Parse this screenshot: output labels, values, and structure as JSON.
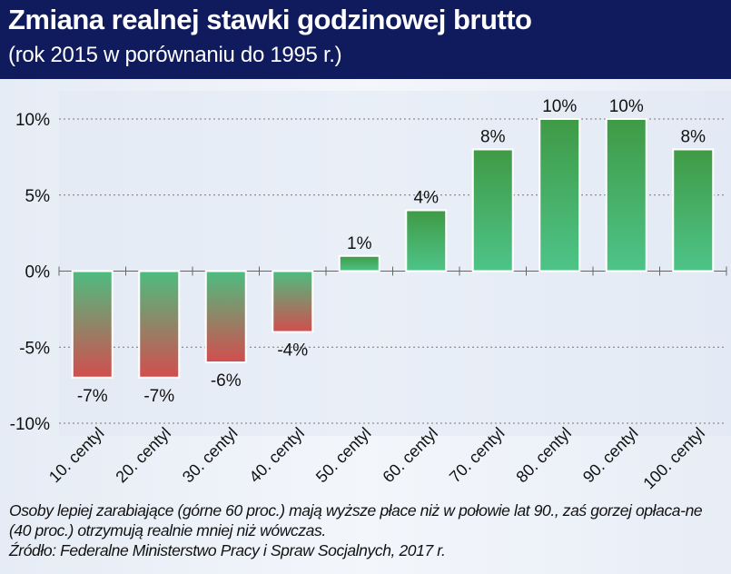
{
  "header": {
    "title": "Zmiana realnej stawki godzinowej brutto",
    "subtitle": "(rok 2015 w porównaniu do 1995 r.)"
  },
  "chart_data": {
    "type": "bar",
    "title": "Zmiana realnej stawki godzinowej brutto",
    "subtitle": "(rok 2015 w porównaniu do 1995 r.)",
    "xlabel": "",
    "ylabel": "",
    "categories": [
      "10. centyl",
      "20. centyl",
      "30. centyl",
      "40. centyl",
      "50. centyl",
      "60. centyl",
      "70. centyl",
      "80. centyl",
      "90. centyl",
      "100. centyl"
    ],
    "values": [
      -7,
      -7,
      -6,
      -4,
      1,
      4,
      8,
      10,
      10,
      8
    ],
    "data_labels": [
      "-7%",
      "-7%",
      "-6%",
      "-4%",
      "1%",
      "4%",
      "8%",
      "10%",
      "10%",
      "8%"
    ],
    "ylim": [
      -10,
      10
    ],
    "yticks": [
      10,
      5,
      0,
      -5,
      -10
    ],
    "ytick_labels": [
      "10%",
      "5%",
      "0%",
      "-5%",
      "-10%"
    ],
    "grid": true,
    "colors": {
      "positive_top": "#3f9a45",
      "positive_bottom": "#4ec489",
      "negative_top": "#4dbd80",
      "negative_bottom": "#d24e4e"
    }
  },
  "footer": {
    "note": "Osoby lepiej zarabiające (górne 60 proc.) mają wyższe płace niż w połowie lat 90., zaś gorzej opłaca-ne (40 proc.) otrzymują realnie mniej niż wówczas.",
    "source": "Źródło: Federalne Ministerstwo Pracy i Spraw Socjalnych, 2017 r."
  }
}
